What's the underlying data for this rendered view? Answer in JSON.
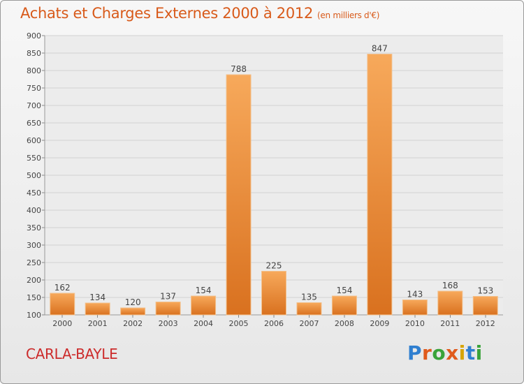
{
  "title": "Achats et Charges Externes 2000 à 2012",
  "unit": "(en milliers d'€)",
  "commune": "CARLA-BAYLE",
  "logo": {
    "text": "Proxiti",
    "colors": [
      "#2f7fd0",
      "#e05a1c",
      "#3aa33a",
      "#e05a1c",
      "#d7a400",
      "#2f7fd0",
      "#3aa33a"
    ]
  },
  "colors": {
    "title": "#d85a1a",
    "commune": "#cc2b2b",
    "bar_light": "#f7a95b",
    "bar_dark": "#d9711f"
  },
  "chart_data": {
    "type": "bar",
    "categories": [
      "2000",
      "2001",
      "2002",
      "2003",
      "2004",
      "2005",
      "2006",
      "2007",
      "2008",
      "2009",
      "2010",
      "2011",
      "2012"
    ],
    "values": [
      162,
      134,
      120,
      137,
      154,
      788,
      225,
      135,
      154,
      847,
      143,
      168,
      153
    ],
    "data_labels": [
      "162",
      "134",
      "120",
      "137",
      "154",
      "788",
      "225",
      "135",
      "154",
      "847",
      "143",
      "168",
      "153"
    ],
    "ylim": [
      100,
      900
    ],
    "yticks": [
      "100",
      "150",
      "200",
      "250",
      "300",
      "350",
      "400",
      "450",
      "500",
      "550",
      "600",
      "650",
      "700",
      "750",
      "800",
      "850",
      "900"
    ],
    "grid": true,
    "xlabel": "",
    "ylabel": ""
  }
}
